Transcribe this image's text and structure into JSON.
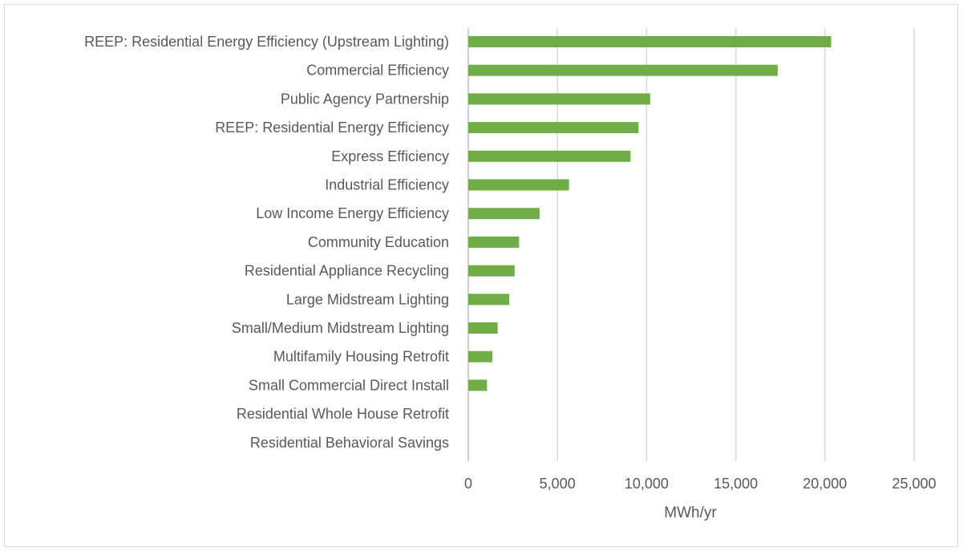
{
  "chart_data": {
    "type": "bar",
    "orientation": "horizontal",
    "categories": [
      "REEP: Residential Energy Efficiency (Upstream Lighting)",
      "Commercial Efficiency",
      "Public Agency Partnership",
      "REEP: Residential Energy Efficiency",
      "Express Efficiency",
      "Industrial Efficiency",
      "Low Income Energy Efficiency",
      "Community Education",
      "Residential Appliance Recycling",
      "Large Midstream Lighting ",
      "Small/Medium Midstream Lighting",
      "Multifamily Housing Retrofit",
      "Small Commercial Direct Install",
      "Residential Whole House Retrofit",
      "Residential Behavioral Savings"
    ],
    "values": [
      20350,
      17350,
      10200,
      9550,
      9100,
      5650,
      4000,
      2850,
      2600,
      2300,
      1650,
      1350,
      1050,
      0,
      0
    ],
    "title": "",
    "xlabel": "MWh/yr",
    "ylabel": "",
    "xlim": [
      0,
      25000
    ],
    "xticks": [
      0,
      5000,
      10000,
      15000,
      20000,
      25000
    ],
    "xtick_labels": [
      "0",
      "5,000",
      "10,000",
      "15,000",
      "20,000",
      "25,000"
    ],
    "grid": "vertical",
    "legend": "none",
    "bar_color": "#70AD47"
  }
}
